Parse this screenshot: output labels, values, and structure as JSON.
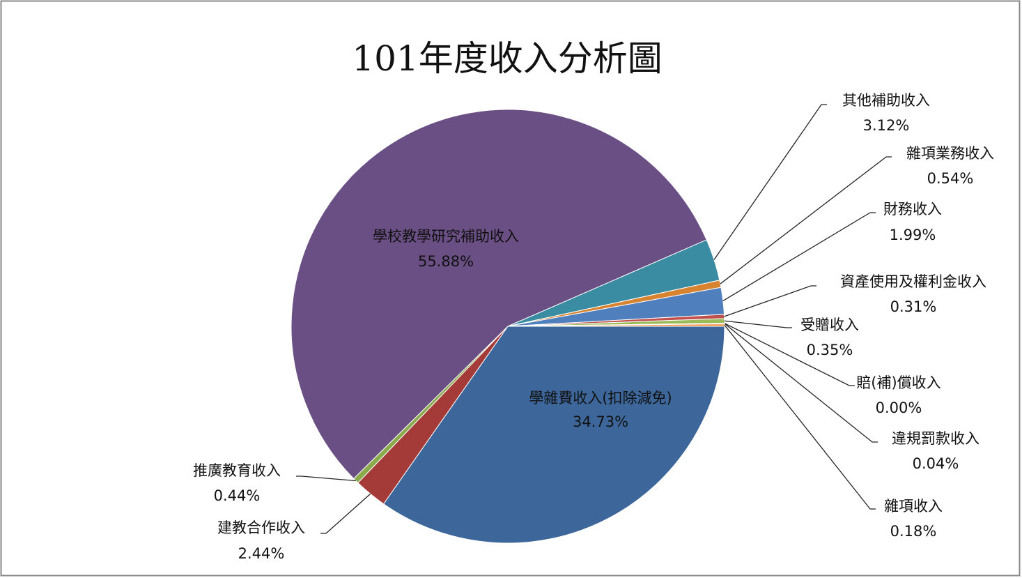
{
  "chart_data": {
    "type": "pie",
    "title": "101年度收入分析圖",
    "categories": [
      "學雜費收入(扣除減免)",
      "建教合作收入",
      "推廣教育收入",
      "學校教學研究補助收入",
      "其他補助收入",
      "雜項業務收入",
      "財務收入",
      "資產使用及權利金收入",
      "受贈收入",
      "賠(補)償收入",
      "違規罰款收入",
      "雜項收入"
    ],
    "values": [
      34.73,
      2.44,
      0.44,
      55.88,
      3.12,
      0.54,
      1.99,
      0.31,
      0.35,
      0.0,
      0.04,
      0.18
    ],
    "value_labels": [
      "34.73%",
      "2.44%",
      "0.44%",
      "55.88%",
      "3.12%",
      "0.54%",
      "1.99%",
      "0.31%",
      "0.35%",
      "0.00%",
      "0.04%",
      "0.18%"
    ],
    "colors": [
      "#3d679a",
      "#a53b38",
      "#8aaa4c",
      "#6a4f85",
      "#3a8ca2",
      "#d7832f",
      "#4f7fbc",
      "#c0504d",
      "#9bbb59",
      "#7e62a0",
      "#4bacc6",
      "#f79646"
    ]
  }
}
